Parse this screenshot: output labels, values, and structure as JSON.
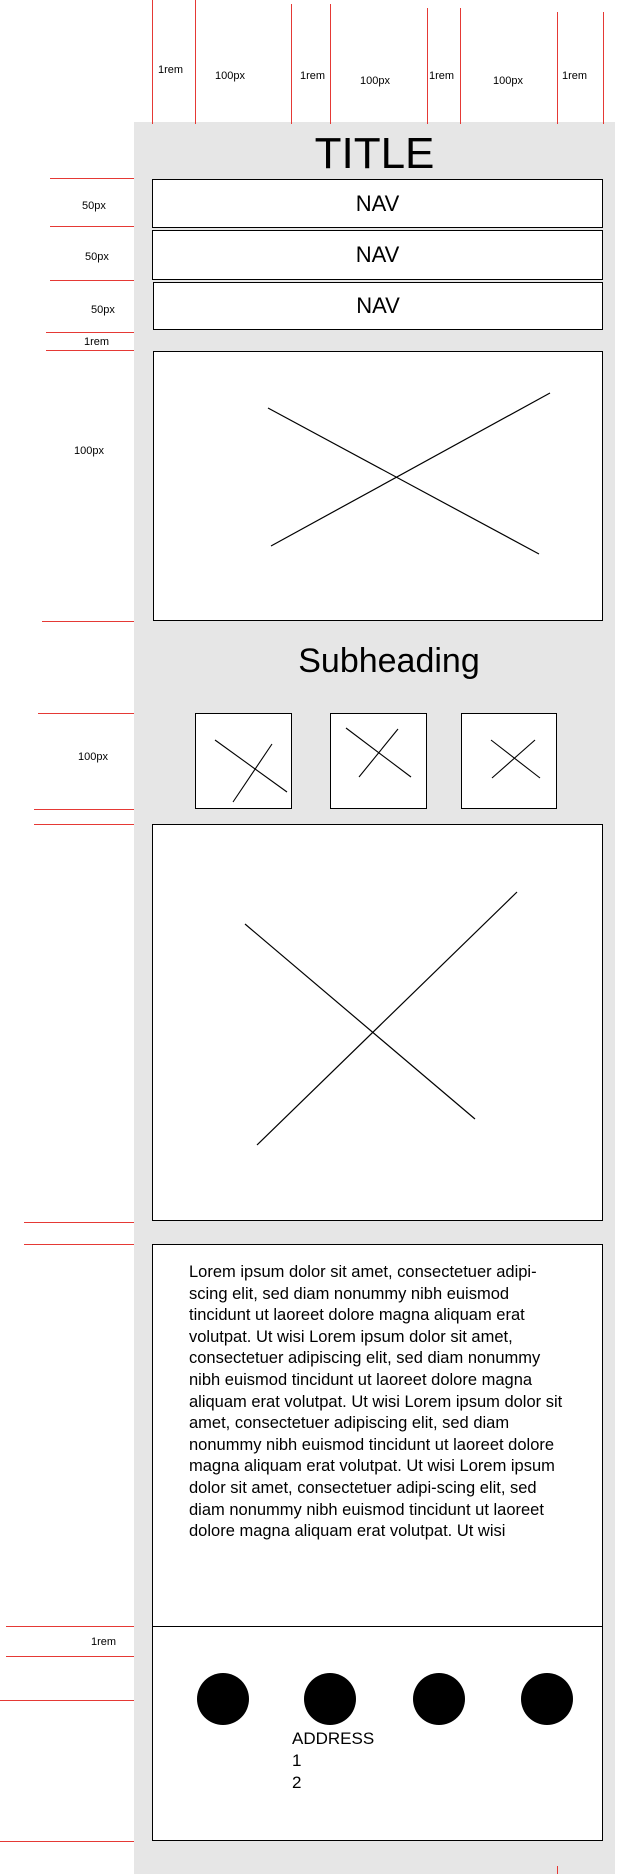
{
  "colors": {
    "guide": "#e53935",
    "panel": "#e6e6e6",
    "stroke": "#000000"
  },
  "top_dimensions": [
    "1rem",
    "100px",
    "1rem",
    "100px",
    "1rem",
    "100px",
    "1rem"
  ],
  "side_dimensions": {
    "nav1": "50px",
    "nav2": "50px",
    "nav3": "50px",
    "gap": "1rem",
    "hero": "100px",
    "thumbs": "100px",
    "footer_gap": "1rem"
  },
  "title": "TITLE",
  "nav_items": [
    "NAV",
    "NAV",
    "NAV"
  ],
  "subheading": "Subheading",
  "image_icon": "placeholder-x-icon",
  "body_text": "Lorem ipsum dolor sit amet, consectetuer adipi-scing elit, sed diam nonummy nibh euismod tincidunt ut laoreet dolore magna aliquam erat volutpat. Ut wisi Lorem ipsum dolor sit amet, consectetuer adipiscing elit, sed diam nonummy nibh euismod tincidunt ut laoreet dolore magna aliquam erat volutpat. Ut wisi Lorem ipsum dolor sit amet, consectetuer adipiscing elit, sed diam nonummy nibh euismod tincidunt ut laoreet dolore magna aliquam erat volutpat. Ut wisi Lorem ipsum dolor sit amet, consectetuer adipi-scing elit, sed diam nonummy nibh euismod tincidunt ut laoreet dolore magna aliquam erat volutpat. Ut wisi",
  "footer": {
    "social_icons": [
      "circle-icon",
      "circle-icon",
      "circle-icon",
      "circle-icon"
    ],
    "address_label": "ADDRESS",
    "address_lines": [
      "1",
      "2"
    ]
  }
}
